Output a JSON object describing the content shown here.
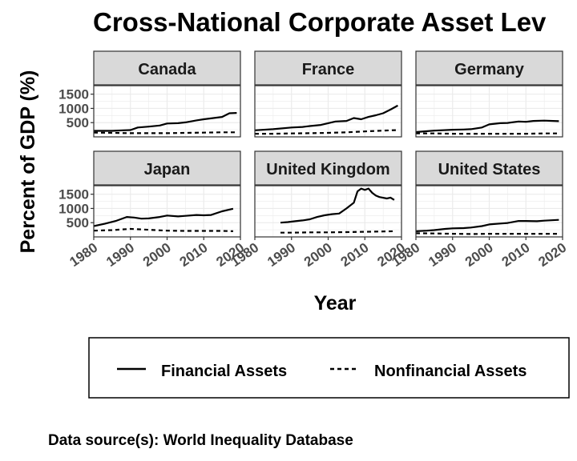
{
  "title": "Cross-National Corporate Asset Lev",
  "caption": "Data source(s): World Inequality Database",
  "legend": {
    "items": [
      {
        "label": "Financial Assets",
        "linetype": "solid"
      },
      {
        "label": "Nonfinancial Assets",
        "linetype": "dashed"
      }
    ]
  },
  "chart_data": {
    "type": "line",
    "title": "Cross-National Corporate Asset Lev",
    "xlabel": "Year",
    "ylabel": "Percent of GDP (%)",
    "xlim": [
      1980,
      2020
    ],
    "ylim": [
      0,
      1800
    ],
    "x_ticks": [
      1980,
      1990,
      2000,
      2010,
      2020
    ],
    "y_ticks": [
      500,
      1000,
      1500
    ],
    "grid": true,
    "legend_position": "bottom",
    "colors": {
      "line": "#000000",
      "strip_fill": "#d9d9d9",
      "grid": "#ebebeb"
    },
    "facets": [
      {
        "name": "Canada",
        "series": [
          {
            "name": "Financial Assets",
            "x": [
              1980,
              1985,
              1988,
              1990,
              1992,
              1995,
              1998,
              2000,
              2003,
              2005,
              2008,
              2010,
              2012,
              2015,
              2017,
              2019
            ],
            "y": [
              210,
              210,
              230,
              240,
              330,
              360,
              400,
              470,
              480,
              510,
              580,
              620,
              650,
              700,
              830,
              840
            ]
          },
          {
            "name": "Nonfinancial Assets",
            "x": [
              1980,
              1985,
              1990,
              1995,
              2000,
              2005,
              2010,
              2015,
              2019
            ],
            "y": [
              150,
              140,
              130,
              130,
              130,
              140,
              150,
              160,
              160
            ]
          }
        ]
      },
      {
        "name": "France",
        "series": [
          {
            "name": "Financial Assets",
            "x": [
              1980,
              1985,
              1990,
              1993,
              1995,
              1998,
              2000,
              2002,
              2005,
              2007,
              2009,
              2011,
              2013,
              2015,
              2017,
              2019
            ],
            "y": [
              230,
              270,
              330,
              350,
              380,
              420,
              480,
              540,
              560,
              660,
              620,
              700,
              760,
              830,
              960,
              1100
            ]
          },
          {
            "name": "Nonfinancial Assets",
            "x": [
              1980,
              1985,
              1990,
              1995,
              2000,
              2005,
              2010,
              2015,
              2019
            ],
            "y": [
              110,
              110,
              120,
              130,
              140,
              160,
              190,
              220,
              240
            ]
          }
        ]
      },
      {
        "name": "Germany",
        "series": [
          {
            "name": "Financial Assets",
            "x": [
              1980,
              1985,
              1990,
              1993,
              1995,
              1998,
              2000,
              2003,
              2005,
              2008,
              2010,
              2012,
              2015,
              2019
            ],
            "y": [
              170,
              220,
              250,
              260,
              270,
              330,
              440,
              480,
              490,
              540,
              530,
              560,
              570,
              550
            ]
          },
          {
            "name": "Nonfinancial Assets",
            "x": [
              1980,
              1985,
              1990,
              1995,
              2000,
              2005,
              2010,
              2015,
              2019
            ],
            "y": [
              120,
              120,
              110,
              110,
              110,
              110,
              110,
              120,
              120
            ]
          }
        ]
      },
      {
        "name": "Japan",
        "series": [
          {
            "name": "Financial Assets",
            "x": [
              1980,
              1983,
              1986,
              1989,
              1991,
              1993,
              1995,
              1998,
              2000,
              2003,
              2005,
              2008,
              2010,
              2012,
              2015,
              2018
            ],
            "y": [
              380,
              460,
              560,
              700,
              680,
              640,
              650,
              700,
              750,
              720,
              740,
              770,
              760,
              770,
              900,
              990
            ]
          },
          {
            "name": "Nonfinancial Assets",
            "x": [
              1980,
              1985,
              1990,
              1995,
              2000,
              2005,
              2010,
              2015,
              2018
            ],
            "y": [
              220,
              240,
              280,
              250,
              220,
              210,
              210,
              210,
              200
            ]
          }
        ]
      },
      {
        "name": "United Kingdom",
        "series": [
          {
            "name": "Financial Assets",
            "x": [
              1987,
              1989,
              1991,
              1993,
              1995,
              1997,
              1999,
              2001,
              2003,
              2005,
              2007,
              2008,
              2009,
              2010,
              2011,
              2012,
              2013,
              2014,
              2016,
              2017,
              2018
            ],
            "y": [
              500,
              520,
              550,
              580,
              620,
              700,
              760,
              800,
              820,
              1000,
              1200,
              1600,
              1700,
              1650,
              1700,
              1550,
              1450,
              1400,
              1350,
              1380,
              1300
            ]
          },
          {
            "name": "Nonfinancial Assets",
            "x": [
              1987,
              1990,
              1995,
              2000,
              2005,
              2010,
              2015,
              2018
            ],
            "y": [
              150,
              150,
              160,
              160,
              170,
              180,
              190,
              200
            ]
          }
        ]
      },
      {
        "name": "United States",
        "series": [
          {
            "name": "Financial Assets",
            "x": [
              1980,
              1983,
              1985,
              1988,
              1990,
              1993,
              1995,
              1998,
              2000,
              2003,
              2005,
              2008,
              2010,
              2013,
              2015,
              2019
            ],
            "y": [
              200,
              220,
              240,
              280,
              300,
              310,
              330,
              380,
              440,
              470,
              490,
              560,
              560,
              550,
              570,
              600
            ]
          },
          {
            "name": "Nonfinancial Assets",
            "x": [
              1980,
              1985,
              1990,
              1995,
              2000,
              2005,
              2010,
              2015,
              2019
            ],
            "y": [
              130,
              120,
              110,
              100,
              110,
              110,
              110,
              110,
              110
            ]
          }
        ]
      }
    ]
  }
}
